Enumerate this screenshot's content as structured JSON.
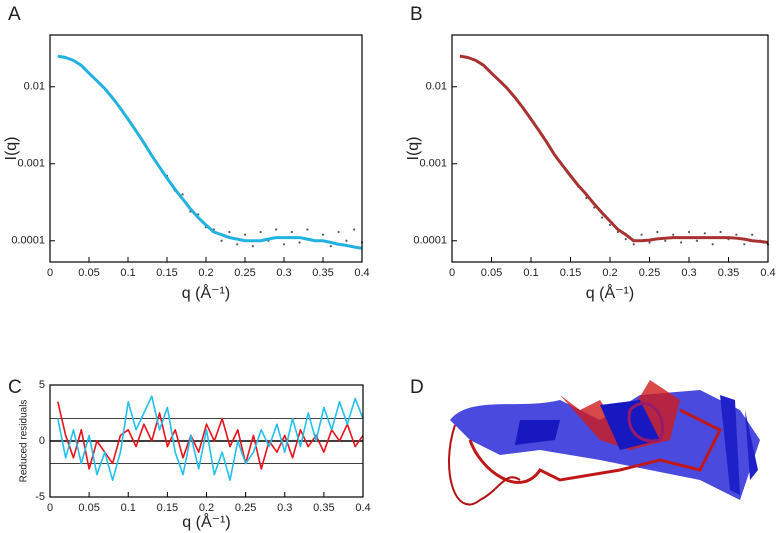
{
  "chart_data": [
    {
      "type": "scatter",
      "panel": "A",
      "y_label": "I(q)",
      "x_label": "q (Å⁻¹)",
      "log_y": true,
      "xlim": [
        0,
        0.4
      ],
      "xticks": [
        0,
        0.05,
        0.1,
        0.15,
        0.2,
        0.25,
        0.3,
        0.35,
        0.4
      ],
      "ylim": [
        5.3e-05,
        0.047
      ],
      "yticks": [
        0.0001,
        0.001,
        0.01
      ],
      "series": [
        {
          "kind": "points",
          "color": "#555555",
          "x": [
            0.15,
            0.16,
            0.17,
            0.18,
            0.19,
            0.2,
            0.21,
            0.22,
            0.23,
            0.24,
            0.25,
            0.26,
            0.27,
            0.28,
            0.29,
            0.3,
            0.31,
            0.32,
            0.33,
            0.34,
            0.35,
            0.36,
            0.37,
            0.38,
            0.39,
            0.4
          ],
          "values": [
            0.0007,
            0.00045,
            0.0004,
            0.00024,
            0.00022,
            0.00015,
            0.00014,
            0.0001,
            0.00013,
            9e-05,
            0.00012,
            8.5e-05,
            0.00013,
            0.0001,
            0.00014,
            9e-05,
            0.00013,
            9.5e-05,
            0.00014,
            0.0001,
            0.00012,
            8.5e-05,
            0.00013,
            0.0001,
            0.00014,
            9.5e-05
          ]
        },
        {
          "kind": "line",
          "color": "#22b2e0",
          "x": [
            0.01,
            0.02,
            0.03,
            0.04,
            0.05,
            0.06,
            0.07,
            0.08,
            0.09,
            0.1,
            0.11,
            0.12,
            0.13,
            0.14,
            0.15,
            0.16,
            0.17,
            0.18,
            0.19,
            0.2,
            0.21,
            0.22,
            0.23,
            0.24,
            0.25,
            0.26,
            0.27,
            0.28,
            0.29,
            0.3,
            0.31,
            0.32,
            0.33,
            0.34,
            0.35,
            0.36,
            0.37,
            0.38,
            0.39,
            0.4
          ],
          "values": [
            0.025,
            0.024,
            0.022,
            0.019,
            0.015,
            0.012,
            0.0095,
            0.0072,
            0.0053,
            0.0038,
            0.0027,
            0.0019,
            0.0013,
            0.00092,
            0.00065,
            0.00047,
            0.00035,
            0.00026,
            0.0002,
            0.00016,
            0.00013,
            0.00012,
            0.00011,
            0.000105,
            0.0001,
            0.0001,
            0.0001,
            0.000105,
            0.00011,
            0.00011,
            0.00011,
            0.00011,
            0.000105,
            0.0001,
            0.0001,
            9.5e-05,
            9e-05,
            8.7e-05,
            8.3e-05,
            8e-05
          ]
        }
      ]
    },
    {
      "type": "scatter",
      "panel": "B",
      "y_label": "I(q)",
      "x_label": "q (Å⁻¹)",
      "log_y": true,
      "xlim": [
        0,
        0.4
      ],
      "xticks": [
        0,
        0.05,
        0.1,
        0.15,
        0.2,
        0.25,
        0.3,
        0.35,
        0.4
      ],
      "ylim": [
        5.3e-05,
        0.047
      ],
      "yticks": [
        0.0001,
        0.001,
        0.01
      ],
      "series": [
        {
          "kind": "points",
          "color": "#555555",
          "x": [
            0.15,
            0.16,
            0.17,
            0.18,
            0.19,
            0.2,
            0.21,
            0.22,
            0.23,
            0.24,
            0.25,
            0.26,
            0.27,
            0.28,
            0.29,
            0.3,
            0.31,
            0.32,
            0.33,
            0.34,
            0.35,
            0.36,
            0.37,
            0.38,
            0.39,
            0.4
          ],
          "values": [
            0.00068,
            0.0005,
            0.00036,
            0.00027,
            0.0002,
            0.00016,
            0.00013,
            0.000105,
            9e-05,
            0.00012,
            9.5e-05,
            0.00013,
            0.0001,
            0.00012,
            9.5e-05,
            0.00013,
            0.0001,
            0.000125,
            9e-05,
            0.00013,
            0.000105,
            0.00012,
            9e-05,
            0.00012,
            0.0001,
            9e-05
          ]
        },
        {
          "kind": "line",
          "color": "#a83232",
          "x": [
            0.01,
            0.02,
            0.03,
            0.04,
            0.05,
            0.06,
            0.07,
            0.08,
            0.09,
            0.1,
            0.11,
            0.12,
            0.13,
            0.14,
            0.15,
            0.16,
            0.17,
            0.18,
            0.19,
            0.2,
            0.21,
            0.22,
            0.23,
            0.24,
            0.25,
            0.26,
            0.27,
            0.28,
            0.29,
            0.3,
            0.31,
            0.32,
            0.33,
            0.34,
            0.35,
            0.36,
            0.37,
            0.38,
            0.39,
            0.4
          ],
          "values": [
            0.025,
            0.024,
            0.022,
            0.019,
            0.015,
            0.012,
            0.0095,
            0.0072,
            0.0053,
            0.0038,
            0.0027,
            0.0019,
            0.0013,
            0.00095,
            0.0007,
            0.00052,
            0.0004,
            0.0003,
            0.00023,
            0.00018,
            0.00014,
            0.00012,
            0.0001,
            0.0001,
            0.000102,
            0.000106,
            0.000108,
            0.00011,
            0.00011,
            0.00011,
            0.00011,
            0.00011,
            0.00011,
            0.00011,
            0.00011,
            0.000108,
            0.000105,
            0.0001,
            9.8e-05,
            9.5e-05
          ]
        }
      ]
    },
    {
      "type": "line",
      "panel": "C",
      "y_label": "Reduced residuals",
      "x_label": "q (Å⁻¹)",
      "xlim": [
        0,
        0.4
      ],
      "xticks": [
        0,
        0.05,
        0.1,
        0.15,
        0.2,
        0.25,
        0.3,
        0.35,
        0.4
      ],
      "ylim": [
        -5,
        5
      ],
      "yticks": [
        -5,
        0,
        5
      ],
      "hlines": [
        -2,
        0,
        2
      ],
      "series": [
        {
          "kind": "line",
          "color": "#e8121b",
          "x": [
            0.01,
            0.02,
            0.03,
            0.04,
            0.05,
            0.06,
            0.07,
            0.08,
            0.09,
            0.1,
            0.11,
            0.12,
            0.13,
            0.14,
            0.15,
            0.16,
            0.17,
            0.18,
            0.19,
            0.2,
            0.21,
            0.22,
            0.23,
            0.24,
            0.25,
            0.26,
            0.27,
            0.28,
            0.29,
            0.3,
            0.31,
            0.32,
            0.33,
            0.34,
            0.35,
            0.36,
            0.37,
            0.38,
            0.39,
            0.4
          ],
          "values": [
            3.5,
            0.5,
            -1.5,
            1,
            -2.5,
            0,
            -1,
            -2,
            0.5,
            1,
            -0.5,
            1.5,
            0,
            2.5,
            -0.5,
            1,
            -1.5,
            0.5,
            -1,
            1.5,
            0,
            2,
            -0.5,
            1,
            -2,
            0.5,
            -2.5,
            0,
            -1,
            0.5,
            -1.5,
            1,
            -0.5,
            0.5,
            -1,
            1,
            0,
            1.5,
            -0.5,
            0.5
          ]
        },
        {
          "kind": "line",
          "color": "#22c0ee",
          "x": [
            0.01,
            0.02,
            0.03,
            0.04,
            0.05,
            0.06,
            0.07,
            0.08,
            0.09,
            0.1,
            0.11,
            0.12,
            0.13,
            0.14,
            0.15,
            0.16,
            0.17,
            0.18,
            0.19,
            0.2,
            0.21,
            0.22,
            0.23,
            0.24,
            0.25,
            0.26,
            0.27,
            0.28,
            0.29,
            0.3,
            0.31,
            0.32,
            0.33,
            0.34,
            0.35,
            0.36,
            0.37,
            0.38,
            0.39,
            0.4
          ],
          "values": [
            2,
            -1.5,
            1,
            -2,
            0.5,
            -3,
            -1,
            -3.5,
            -1,
            3.5,
            1,
            2.5,
            4,
            1,
            3,
            -1,
            -3,
            0.5,
            -2.5,
            1,
            -3,
            -1,
            -3.5,
            0,
            -2,
            -1,
            1,
            -0.5,
            1.5,
            -1,
            2,
            -0.5,
            2.5,
            0,
            3,
            1,
            3.5,
            1.5,
            3.8,
            2
          ]
        }
      ]
    }
  ],
  "structure": {
    "panel": "D"
  }
}
